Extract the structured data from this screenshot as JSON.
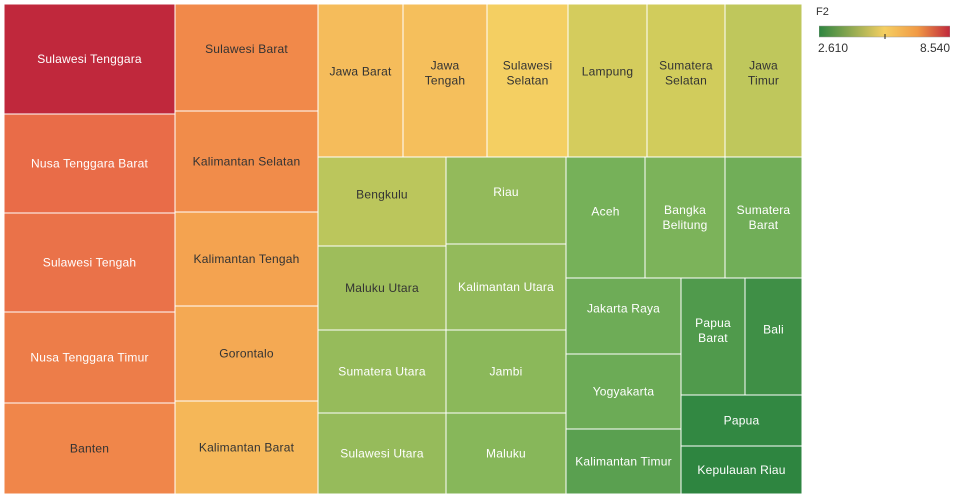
{
  "chart_data": {
    "type": "treemap",
    "color_measure": "F2",
    "color_range": [
      2.61,
      8.54
    ],
    "color_scale": [
      "#2e8540",
      "#f5cf62",
      "#c0283c"
    ],
    "items": [
      {
        "label": "Sulawesi Tenggara",
        "value": 8.54
      },
      {
        "label": "Nusa Tenggara Barat",
        "value": 7.6
      },
      {
        "label": "Sulawesi Tengah",
        "value": 7.5
      },
      {
        "label": "Nusa Tenggara Timur",
        "value": 7.3
      },
      {
        "label": "Banten",
        "value": 7.15
      },
      {
        "label": "Sulawesi Barat",
        "value": 7.1
      },
      {
        "label": "Kalimantan Selatan",
        "value": 7.05
      },
      {
        "label": "Kalimantan Tengah",
        "value": 6.65
      },
      {
        "label": "Gorontalo",
        "value": 6.55
      },
      {
        "label": "Kalimantan Barat",
        "value": 6.3
      },
      {
        "label": "Jawa Barat",
        "value": 6.2
      },
      {
        "label": "Jawa Tengah",
        "value": 6.15
      },
      {
        "label": "Sulawesi Selatan",
        "value": 5.85
      },
      {
        "label": "Lampung",
        "value": 5.35
      },
      {
        "label": "Sumatera Selatan",
        "value": 5.3
      },
      {
        "label": "Jawa Timur",
        "value": 5.05
      },
      {
        "label": "Bengkulu",
        "value": 5.0
      },
      {
        "label": "Riau",
        "value": 4.45
      },
      {
        "label": "Aceh",
        "value": 4.05
      },
      {
        "label": "Bangka Belitung",
        "value": 4.15
      },
      {
        "label": "Sumatera Barat",
        "value": 3.95
      },
      {
        "label": "Maluku Utara",
        "value": 4.6
      },
      {
        "label": "Kalimantan Utara",
        "value": 4.45
      },
      {
        "label": "Sumatera Utara",
        "value": 4.5
      },
      {
        "label": "Jambi",
        "value": 4.35
      },
      {
        "label": "Sulawesi Utara",
        "value": 4.5
      },
      {
        "label": "Maluku",
        "value": 4.3
      },
      {
        "label": "Jakarta Raya",
        "value": 3.9
      },
      {
        "label": "Yogyakarta",
        "value": 3.85
      },
      {
        "label": "Kalimantan Timur",
        "value": 3.5
      },
      {
        "label": "Papua Barat",
        "value": 3.3
      },
      {
        "label": "Bali",
        "value": 2.95
      },
      {
        "label": "Papua",
        "value": 2.7
      },
      {
        "label": "Kepulauan Riau",
        "value": 2.61
      }
    ]
  },
  "legend": {
    "title": "F2",
    "min_label": "2.610",
    "max_label": "8.540"
  }
}
